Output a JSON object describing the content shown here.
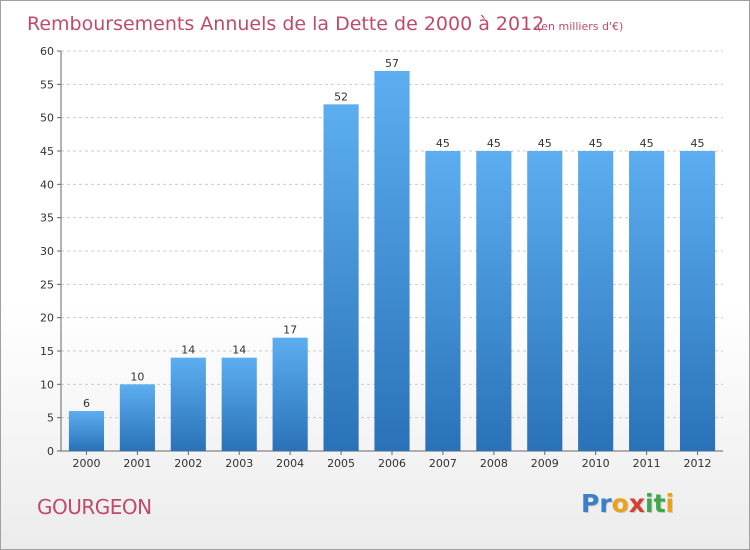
{
  "chart_data": {
    "type": "bar",
    "title": "Remboursements Annuels de la Dette de 2000 à 2012",
    "subtitle": "(en milliers d'€)",
    "categories": [
      "2000",
      "2001",
      "2002",
      "2003",
      "2004",
      "2005",
      "2006",
      "2007",
      "2008",
      "2009",
      "2010",
      "2011",
      "2012"
    ],
    "values": [
      6,
      10,
      14,
      14,
      17,
      52,
      57,
      45,
      45,
      45,
      45,
      45,
      45
    ],
    "ylim": [
      0,
      60
    ],
    "yticks": [
      0,
      5,
      10,
      15,
      20,
      25,
      30,
      35,
      40,
      45,
      50,
      55,
      60
    ],
    "grid": true,
    "bar_color": "#3a8fd6",
    "bar_color_light": "#5caef0",
    "bar_color_dark": "#2a72b8",
    "grid_color": "#cccccc"
  },
  "footer": {
    "commune": "GOURGEON",
    "brand_letters": [
      {
        "ch": "P",
        "color": "#3b7ec9"
      },
      {
        "ch": "r",
        "color": "#3b7ec9"
      },
      {
        "ch": "o",
        "color": "#e8a21b"
      },
      {
        "ch": "x",
        "color": "#d4402f"
      },
      {
        "ch": "i",
        "color": "#3ea84a"
      },
      {
        "ch": "t",
        "color": "#3ea84a"
      },
      {
        "ch": "i",
        "color": "#e8a21b"
      }
    ],
    "title_color": "#c04a6e"
  }
}
